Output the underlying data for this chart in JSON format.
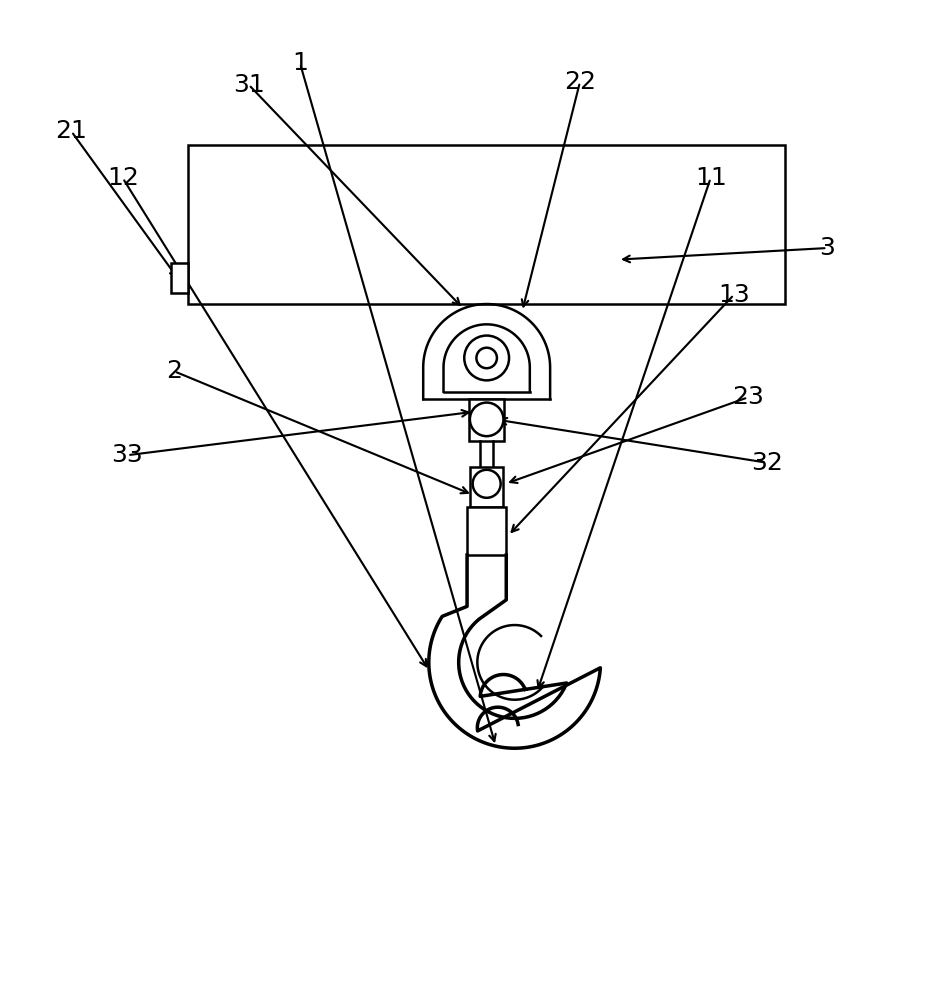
{
  "background_color": "#ffffff",
  "line_color": "#000000",
  "line_width": 1.8,
  "font_size": 18,
  "fig_width": 9.36,
  "fig_height": 10.0,
  "dpi": 100
}
